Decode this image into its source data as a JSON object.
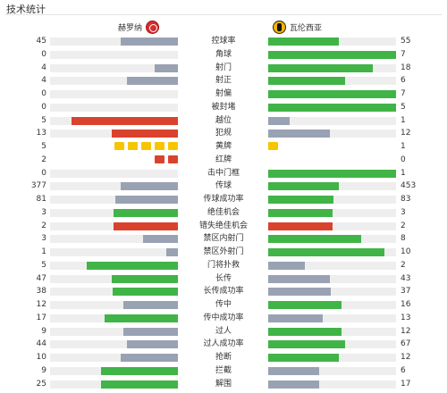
{
  "header": {
    "title": "技术统计"
  },
  "home_team": {
    "name": "赫罗纳"
  },
  "away_team": {
    "name": "瓦伦西亚"
  },
  "colors": {
    "green": "#41b447",
    "gray": "#99a2b3",
    "red": "#d9432e",
    "yellow": "#f6c500",
    "track": "#eeeeee"
  },
  "stats": [
    {
      "label": "控球率",
      "home": "45",
      "away": "55",
      "home_color": "gray",
      "away_color": "green",
      "home_frac": 0.45,
      "away_frac": 0.55
    },
    {
      "label": "角球",
      "home": "0",
      "away": "7",
      "home_color": "gray",
      "away_color": "green",
      "home_frac": 0,
      "away_frac": 1
    },
    {
      "label": "射门",
      "home": "4",
      "away": "18",
      "home_color": "gray",
      "away_color": "green",
      "home_frac": 0.18,
      "away_frac": 0.82
    },
    {
      "label": "射正",
      "home": "4",
      "away": "6",
      "home_color": "gray",
      "away_color": "green",
      "home_frac": 0.4,
      "away_frac": 0.6
    },
    {
      "label": "射偏",
      "home": "0",
      "away": "7",
      "home_color": "gray",
      "away_color": "green",
      "home_frac": 0,
      "away_frac": 1
    },
    {
      "label": "被封堵",
      "home": "0",
      "away": "5",
      "home_color": "gray",
      "away_color": "green",
      "home_frac": 0,
      "away_frac": 1
    },
    {
      "label": "越位",
      "home": "5",
      "away": "1",
      "home_color": "red",
      "away_color": "gray",
      "home_frac": 0.83,
      "away_frac": 0.17
    },
    {
      "label": "犯规",
      "home": "13",
      "away": "12",
      "home_color": "red",
      "away_color": "gray",
      "home_frac": 0.52,
      "away_frac": 0.48
    },
    {
      "label": "黄牌",
      "home": "5",
      "away": "1",
      "cards": "yellow"
    },
    {
      "label": "红牌",
      "home": "2",
      "away": "0",
      "cards": "red"
    },
    {
      "label": "击中门框",
      "home": "0",
      "away": "1",
      "home_color": "gray",
      "away_color": "green",
      "home_frac": 0,
      "away_frac": 1
    },
    {
      "label": "传球",
      "home": "377",
      "away": "453",
      "home_color": "gray",
      "away_color": "green",
      "home_frac": 0.45,
      "away_frac": 0.55
    },
    {
      "label": "传球成功率",
      "home": "81",
      "away": "83",
      "home_color": "gray",
      "away_color": "green",
      "home_frac": 0.49,
      "away_frac": 0.51
    },
    {
      "label": "绝佳机会",
      "home": "3",
      "away": "3",
      "home_color": "green",
      "away_color": "green",
      "home_frac": 0.5,
      "away_frac": 0.5
    },
    {
      "label": "错失绝佳机会",
      "home": "2",
      "away": "2",
      "home_color": "red",
      "away_color": "red",
      "home_frac": 0.5,
      "away_frac": 0.5
    },
    {
      "label": "禁区内射门",
      "home": "3",
      "away": "8",
      "home_color": "gray",
      "away_color": "green",
      "home_frac": 0.27,
      "away_frac": 0.73
    },
    {
      "label": "禁区外射门",
      "home": "1",
      "away": "10",
      "home_color": "gray",
      "away_color": "green",
      "home_frac": 0.09,
      "away_frac": 0.91
    },
    {
      "label": "门将扑救",
      "home": "5",
      "away": "2",
      "home_color": "green",
      "away_color": "gray",
      "home_frac": 0.71,
      "away_frac": 0.29
    },
    {
      "label": "长传",
      "home": "47",
      "away": "43",
      "home_color": "green",
      "away_color": "gray",
      "home_frac": 0.52,
      "away_frac": 0.48
    },
    {
      "label": "长传成功率",
      "home": "38",
      "away": "37",
      "home_color": "green",
      "away_color": "gray",
      "home_frac": 0.51,
      "away_frac": 0.49
    },
    {
      "label": "传中",
      "home": "12",
      "away": "16",
      "home_color": "gray",
      "away_color": "green",
      "home_frac": 0.43,
      "away_frac": 0.57
    },
    {
      "label": "传中成功率",
      "home": "17",
      "away": "13",
      "home_color": "green",
      "away_color": "gray",
      "home_frac": 0.57,
      "away_frac": 0.43
    },
    {
      "label": "过人",
      "home": "9",
      "away": "12",
      "home_color": "gray",
      "away_color": "green",
      "home_frac": 0.43,
      "away_frac": 0.57
    },
    {
      "label": "过人成功率",
      "home": "44",
      "away": "67",
      "home_color": "gray",
      "away_color": "green",
      "home_frac": 0.4,
      "away_frac": 0.6
    },
    {
      "label": "抢断",
      "home": "10",
      "away": "12",
      "home_color": "gray",
      "away_color": "green",
      "home_frac": 0.45,
      "away_frac": 0.55
    },
    {
      "label": "拦截",
      "home": "9",
      "away": "6",
      "home_color": "green",
      "away_color": "gray",
      "home_frac": 0.6,
      "away_frac": 0.4
    },
    {
      "label": "解围",
      "home": "25",
      "away": "17",
      "home_color": "green",
      "away_color": "gray",
      "home_frac": 0.6,
      "away_frac": 0.4
    }
  ]
}
